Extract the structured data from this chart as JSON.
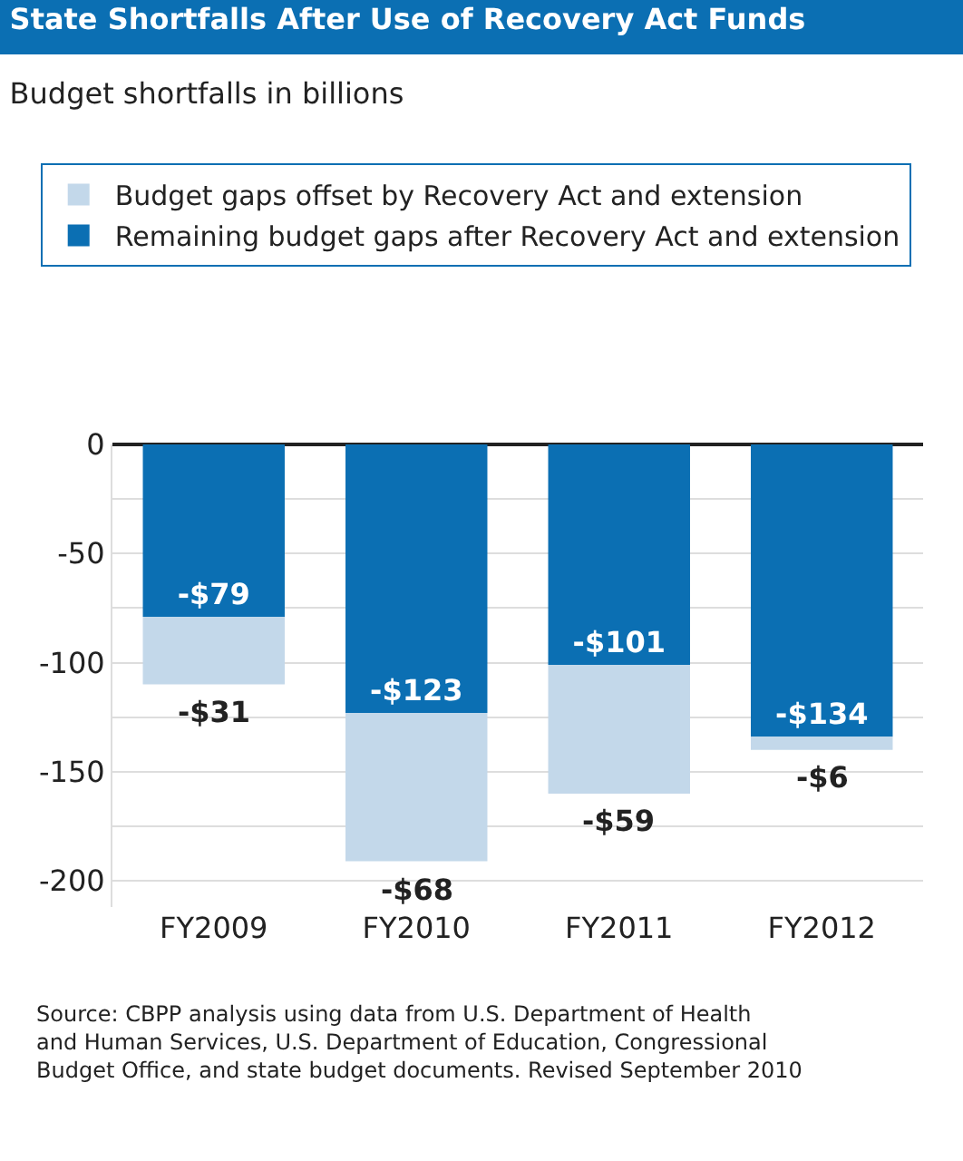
{
  "chart_data": {
    "type": "bar",
    "title": "State Shortfalls After Use of Recovery Act Funds",
    "subtitle": "Budget shortfalls in billions",
    "categories": [
      "FY2009",
      "FY2010",
      "FY2011",
      "FY2012"
    ],
    "stacked": true,
    "series": [
      {
        "name": "Remaining budget gaps after Recovery Act and extension",
        "color": "#0b6fb3",
        "values": [
          -79,
          -123,
          -101,
          -134
        ],
        "value_labels": [
          "-$79",
          "-$123",
          "-$101",
          "-$134"
        ]
      },
      {
        "name": "Budget gaps offset by Recovery Act and extension",
        "color": "#c3d8ea",
        "values": [
          -31,
          -68,
          -59,
          -6
        ],
        "value_labels": [
          "-$31",
          "-$68",
          "-$59",
          "-$6"
        ]
      }
    ],
    "ylim": [
      -212,
      0
    ],
    "yticks": [
      -200,
      {
        "value": -175,
        "label": null
      },
      -150,
      {
        "value": -125,
        "label": null
      },
      -100,
      {
        "value": -75,
        "label": null
      },
      -50,
      {
        "value": -25,
        "label": null
      },
      0
    ],
    "grid": "y",
    "legend": "top",
    "annotations": [
      "Source: CBPP analysis using data from U.S. Department of Health and Human Services, U.S. Department of Education, Congressional Budget Office, and state budget documents. Revised September 2010"
    ]
  }
}
